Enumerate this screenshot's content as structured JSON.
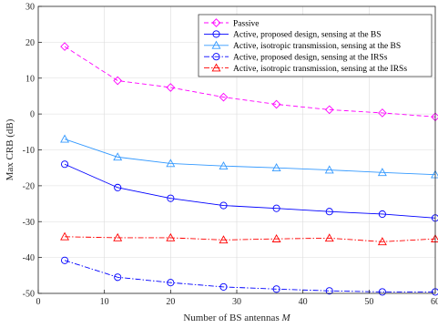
{
  "chart_data": {
    "type": "line",
    "title": "",
    "xlabel": "Number of BS antennas ",
    "xlabel_symbol": "M",
    "ylabel": "Max CRB (dB)",
    "xlim": [
      0,
      60
    ],
    "ylim": [
      -50,
      30
    ],
    "xticks": [
      "0",
      "10",
      "20",
      "30",
      "40",
      "50",
      "60"
    ],
    "yticks": [
      "-50",
      "-40",
      "-30",
      "-20",
      "-10",
      "0",
      "10",
      "20",
      "30"
    ],
    "grid": true,
    "legend_position": "top-right",
    "x": [
      4,
      12,
      20,
      28,
      36,
      44,
      52,
      60
    ],
    "series": [
      {
        "name": "Passive",
        "color": "#ff00ff",
        "dash": "dashed",
        "marker": "diamond",
        "values": [
          18.8,
          9.3,
          7.4,
          4.7,
          2.7,
          1.2,
          0.3,
          -0.8
        ]
      },
      {
        "name": "Active, proposed design, sensing at the BS",
        "color": "#0000ff",
        "dash": "solid",
        "marker": "circle",
        "values": [
          -14.0,
          -20.5,
          -23.5,
          -25.5,
          -26.3,
          -27.2,
          -27.9,
          -29.0
        ]
      },
      {
        "name": "Active, isotropic transmission, sensing at the BS",
        "color": "#3399ff",
        "dash": "solid",
        "marker": "triangle",
        "values": [
          -7.0,
          -12.0,
          -13.8,
          -14.5,
          -15.0,
          -15.6,
          -16.3,
          -16.9
        ]
      },
      {
        "name": "Active, proposed design, sensing at the IRSs",
        "color": "#0000ff",
        "dash": "dashdot",
        "marker": "circle",
        "values": [
          -40.8,
          -45.5,
          -47.0,
          -48.2,
          -48.8,
          -49.3,
          -49.6,
          -49.6
        ]
      },
      {
        "name": "Active, isotropic transmission, sensing at the IRSs",
        "color": "#ff0000",
        "dash": "dashdot",
        "marker": "triangle",
        "values": [
          -34.2,
          -34.5,
          -34.5,
          -35.1,
          -34.8,
          -34.6,
          -35.6,
          -34.8
        ]
      }
    ]
  }
}
